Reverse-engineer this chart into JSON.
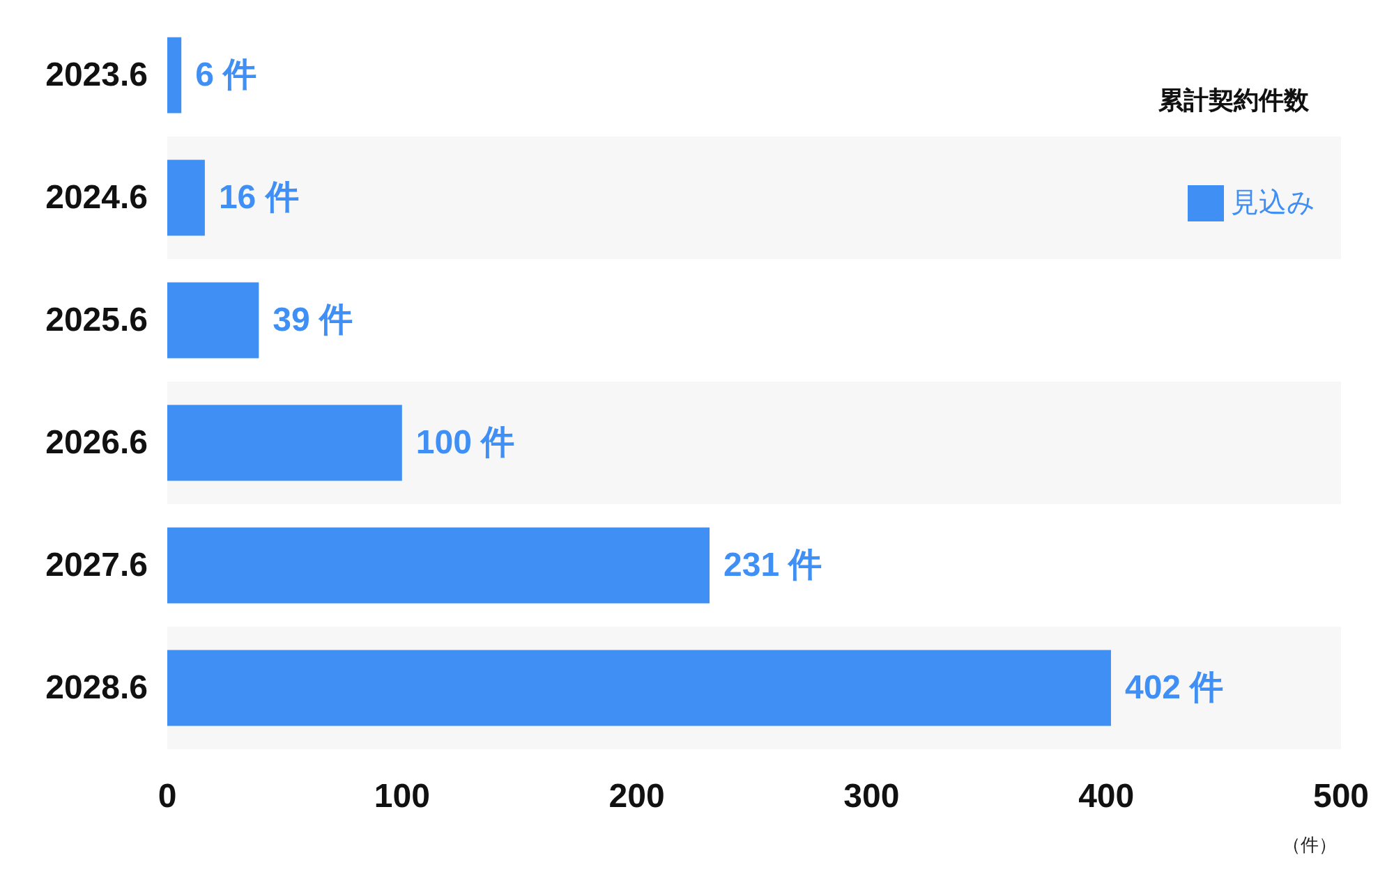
{
  "chart_data": {
    "type": "bar",
    "orientation": "horizontal",
    "title": "累計契約件数",
    "xlabel": "（件）",
    "categories": [
      "2023.6",
      "2024.6",
      "2025.6",
      "2026.6",
      "2027.6",
      "2028.6"
    ],
    "series": [
      {
        "name": "見込み",
        "color": "#3f8ff5",
        "values": [
          6,
          16,
          39,
          100,
          231,
          402
        ],
        "value_labels": [
          "6 件",
          "16 件",
          "39 件",
          "100 件",
          "231 件",
          "402 件"
        ]
      }
    ],
    "xlim": [
      0,
      500
    ],
    "xticks": [
      0,
      100,
      200,
      300,
      400,
      500
    ],
    "grid": false,
    "legend": "top right"
  }
}
